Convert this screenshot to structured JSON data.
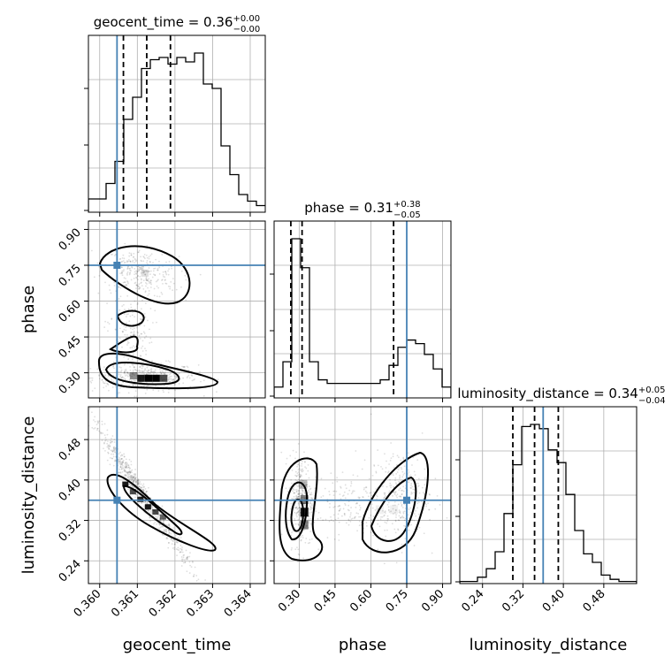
{
  "chart_data": {
    "type": "corner",
    "grid": true,
    "truth_color": "#4682b4",
    "parameters": [
      {
        "name": "geocent_time",
        "label": "geocent_time",
        "range": [
          0.3597,
          0.3644
        ],
        "ticks": [
          "0.360",
          "0.361",
          "0.362",
          "0.363",
          "0.364"
        ],
        "tick_values": [
          0.36,
          0.361,
          0.362,
          0.363,
          0.364
        ],
        "title_main": "geocent_time = 0.36",
        "title_plus": "+0.00",
        "title_minus": "−0.00",
        "quantiles": [
          0.36063,
          0.36125,
          0.36188
        ],
        "truth": 0.36046,
        "histogram": {
          "edges_start": 0.3597,
          "bin_width": 0.000235,
          "counts": [
            6,
            6,
            13,
            23,
            42,
            52,
            65,
            69,
            70,
            67,
            70,
            68,
            72,
            58,
            56,
            30,
            17,
            8,
            5,
            3,
            3,
            2,
            1,
            0
          ]
        }
      },
      {
        "name": "phase",
        "label": "phase",
        "range": [
          0.195,
          0.935
        ],
        "ticks": [
          "0.30",
          "0.45",
          "0.60",
          "0.75",
          "0.90"
        ],
        "tick_values": [
          0.3,
          0.45,
          0.6,
          0.75,
          0.9
        ],
        "title_main": "phase = 0.31",
        "title_plus": "+0.38",
        "title_minus": "−0.05",
        "quantiles": [
          0.265,
          0.312,
          0.695
        ],
        "truth": 0.75,
        "histogram": {
          "edges_start": 0.195,
          "bin_width": 0.037,
          "counts": [
            3,
            10,
            44,
            36,
            10,
            5,
            4,
            4,
            4,
            4,
            4,
            4,
            5,
            9,
            14,
            16,
            15,
            12,
            8,
            3
          ]
        }
      },
      {
        "name": "luminosity_distance",
        "label": "luminosity_distance",
        "range": [
          0.195,
          0.545
        ],
        "ticks": [
          "0.24",
          "0.32",
          "0.40",
          "0.48"
        ],
        "tick_values": [
          0.24,
          0.32,
          0.4,
          0.48
        ],
        "title_main": "luminosity_distance = 0.34",
        "title_plus": "+0.05",
        "title_minus": "−0.04",
        "quantiles": [
          0.3,
          0.343,
          0.39
        ],
        "truth": 0.36,
        "histogram": {
          "edges_start": 0.195,
          "bin_width": 0.0175,
          "counts": [
            1,
            1,
            3,
            7,
            15,
            33,
            56,
            74,
            75,
            73,
            63,
            57,
            42,
            25,
            14,
            10,
            4,
            2,
            1,
            1
          ]
        }
      }
    ]
  }
}
